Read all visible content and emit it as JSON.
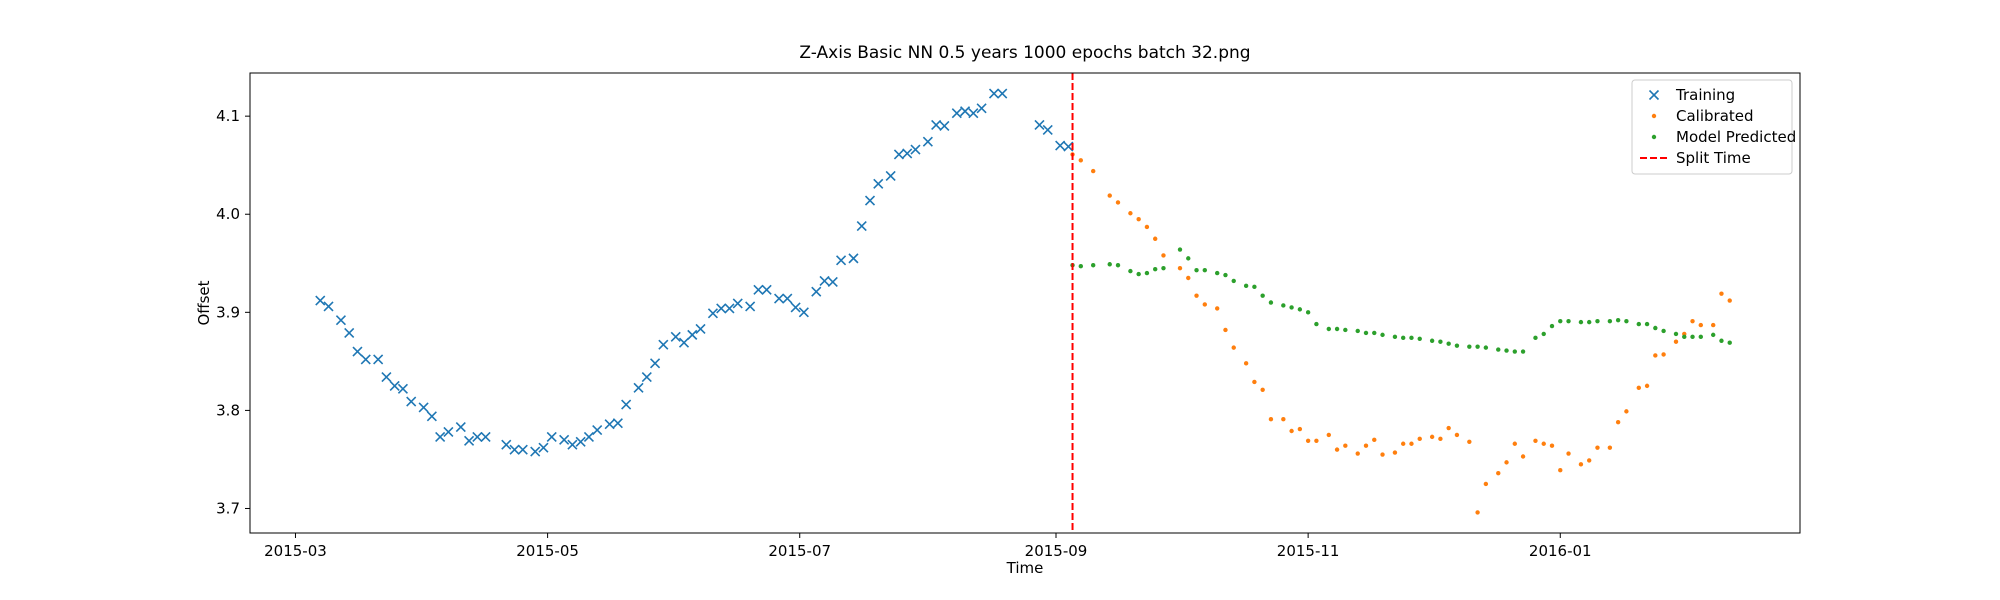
{
  "chart_data": {
    "type": "scatter",
    "title": "Z-Axis Basic NN 0.5 years 1000 epochs batch 32.png",
    "x_label": "Time",
    "y_label": "Offset",
    "xlim": [
      "2015-02-18",
      "2016-02-28"
    ],
    "ylim": [
      3.675,
      4.144
    ],
    "xticks": [
      {
        "value": "2015-03-01",
        "label": "2015-03"
      },
      {
        "value": "2015-05-01",
        "label": "2015-05"
      },
      {
        "value": "2015-07-01",
        "label": "2015-07"
      },
      {
        "value": "2015-09-01",
        "label": "2015-09"
      },
      {
        "value": "2015-11-01",
        "label": "2015-11"
      },
      {
        "value": "2016-01-01",
        "label": "2016-01"
      }
    ],
    "yticks": [
      3.7,
      3.8,
      3.9,
      {
        "value": 4,
        "label": "4.0"
      },
      4.1
    ],
    "legend": "upper right",
    "series": [
      {
        "name": "Training",
        "color": "#1f77b4",
        "marker": "x",
        "x": [
          "2015-03-07",
          "2015-03-09",
          "2015-03-12",
          "2015-03-14",
          "2015-03-16",
          "2015-03-18",
          "2015-03-21",
          "2015-03-23",
          "2015-03-25",
          "2015-03-27",
          "2015-03-29",
          "2015-04-01",
          "2015-04-03",
          "2015-04-05",
          "2015-04-07",
          "2015-04-10",
          "2015-04-12",
          "2015-04-14",
          "2015-04-16",
          "2015-04-21",
          "2015-04-23",
          "2015-04-25",
          "2015-04-28",
          "2015-04-30",
          "2015-05-02",
          "2015-05-05",
          "2015-05-07",
          "2015-05-09",
          "2015-05-11",
          "2015-05-13",
          "2015-05-16",
          "2015-05-18",
          "2015-05-20",
          "2015-05-23",
          "2015-05-25",
          "2015-05-27",
          "2015-05-29",
          "2015-06-01",
          "2015-06-03",
          "2015-06-05",
          "2015-06-07",
          "2015-06-10",
          "2015-06-12",
          "2015-06-14",
          "2015-06-16",
          "2015-06-19",
          "2015-06-21",
          "2015-06-23",
          "2015-06-26",
          "2015-06-28",
          "2015-06-30",
          "2015-07-02",
          "2015-07-05",
          "2015-07-07",
          "2015-07-09",
          "2015-07-11",
          "2015-07-14",
          "2015-07-16",
          "2015-07-18",
          "2015-07-20",
          "2015-07-23",
          "2015-07-25",
          "2015-07-27",
          "2015-07-29",
          "2015-08-01",
          "2015-08-03",
          "2015-08-05",
          "2015-08-08",
          "2015-08-10",
          "2015-08-12",
          "2015-08-14",
          "2015-08-17",
          "2015-08-19",
          "2015-08-28",
          "2015-08-30",
          "2015-09-02",
          "2015-09-04"
        ],
        "values": [
          3.912,
          3.906,
          3.892,
          3.879,
          3.86,
          3.852,
          3.852,
          3.834,
          3.825,
          3.822,
          3.809,
          3.803,
          3.794,
          3.773,
          3.778,
          3.783,
          3.769,
          3.773,
          3.773,
          3.765,
          3.76,
          3.76,
          3.758,
          3.762,
          3.773,
          3.77,
          3.765,
          3.768,
          3.773,
          3.78,
          3.786,
          3.787,
          3.806,
          3.823,
          3.834,
          3.848,
          3.867,
          3.875,
          3.869,
          3.877,
          3.883,
          3.899,
          3.904,
          3.904,
          3.909,
          3.906,
          3.923,
          3.923,
          3.914,
          3.914,
          3.905,
          3.9,
          3.921,
          3.932,
          3.931,
          3.953,
          3.955,
          3.988,
          4.014,
          4.031,
          4.039,
          4.061,
          4.062,
          4.066,
          4.074,
          4.091,
          4.09,
          4.103,
          4.105,
          4.103,
          4.108,
          4.123,
          4.123,
          4.091,
          4.086,
          4.07,
          4.069
        ]
      },
      {
        "name": "Calibrated",
        "color": "#ff7f0e",
        "marker": "o",
        "x": [
          "2015-09-05",
          "2015-09-07",
          "2015-09-10",
          "2015-09-14",
          "2015-09-16",
          "2015-09-19",
          "2015-09-21",
          "2015-09-23",
          "2015-09-25",
          "2015-09-27",
          "2015-10-01",
          "2015-10-03",
          "2015-10-05",
          "2015-10-07",
          "2015-10-10",
          "2015-10-12",
          "2015-10-14",
          "2015-10-17",
          "2015-10-19",
          "2015-10-21",
          "2015-10-23",
          "2015-10-26",
          "2015-10-28",
          "2015-10-30",
          "2015-11-01",
          "2015-11-03",
          "2015-11-06",
          "2015-11-08",
          "2015-11-10",
          "2015-11-13",
          "2015-11-15",
          "2015-11-17",
          "2015-11-19",
          "2015-11-22",
          "2015-11-24",
          "2015-11-26",
          "2015-11-28",
          "2015-12-01",
          "2015-12-03",
          "2015-12-05",
          "2015-12-07",
          "2015-12-10",
          "2015-12-12",
          "2015-12-14",
          "2015-12-17",
          "2015-12-19",
          "2015-12-21",
          "2015-12-23",
          "2015-12-26",
          "2015-12-28",
          "2015-12-30",
          "2016-01-01",
          "2016-01-03",
          "2016-01-06",
          "2016-01-08",
          "2016-01-10",
          "2016-01-13",
          "2016-01-15",
          "2016-01-17",
          "2016-01-20",
          "2016-01-22",
          "2016-01-24",
          "2016-01-26",
          "2016-01-29",
          "2016-01-31",
          "2016-02-02",
          "2016-02-04",
          "2016-02-07",
          "2016-02-09",
          "2016-02-11"
        ],
        "values": [
          4.061,
          4.055,
          4.044,
          4.019,
          4.012,
          4.001,
          3.995,
          3.987,
          3.975,
          3.958,
          3.945,
          3.935,
          3.917,
          3.908,
          3.904,
          3.882,
          3.864,
          3.848,
          3.829,
          3.821,
          3.791,
          3.791,
          3.779,
          3.781,
          3.769,
          3.769,
          3.775,
          3.76,
          3.764,
          3.756,
          3.764,
          3.77,
          3.755,
          3.757,
          3.766,
          3.766,
          3.771,
          3.773,
          3.771,
          3.782,
          3.775,
          3.768,
          3.696,
          3.725,
          3.736,
          3.747,
          3.766,
          3.753,
          3.769,
          3.766,
          3.764,
          3.739,
          3.756,
          3.745,
          3.749,
          3.762,
          3.762,
          3.788,
          3.799,
          3.823,
          3.825,
          3.856,
          3.857,
          3.87,
          3.878,
          3.891,
          3.887,
          3.887,
          3.919,
          3.912
        ]
      },
      {
        "name": "Model Predicted",
        "color": "#2ca02c",
        "marker": "o",
        "x": [
          "2015-09-05",
          "2015-09-07",
          "2015-09-10",
          "2015-09-14",
          "2015-09-16",
          "2015-09-19",
          "2015-09-21",
          "2015-09-23",
          "2015-09-25",
          "2015-09-27",
          "2015-10-01",
          "2015-10-03",
          "2015-10-05",
          "2015-10-07",
          "2015-10-10",
          "2015-10-12",
          "2015-10-14",
          "2015-10-17",
          "2015-10-19",
          "2015-10-21",
          "2015-10-23",
          "2015-10-26",
          "2015-10-28",
          "2015-10-30",
          "2015-11-01",
          "2015-11-03",
          "2015-11-06",
          "2015-11-08",
          "2015-11-10",
          "2015-11-13",
          "2015-11-15",
          "2015-11-17",
          "2015-11-19",
          "2015-11-22",
          "2015-11-24",
          "2015-11-26",
          "2015-11-28",
          "2015-12-01",
          "2015-12-03",
          "2015-12-05",
          "2015-12-07",
          "2015-12-10",
          "2015-12-12",
          "2015-12-14",
          "2015-12-17",
          "2015-12-19",
          "2015-12-21",
          "2015-12-23",
          "2015-12-26",
          "2015-12-28",
          "2015-12-30",
          "2016-01-01",
          "2016-01-03",
          "2016-01-06",
          "2016-01-08",
          "2016-01-10",
          "2016-01-13",
          "2016-01-15",
          "2016-01-17",
          "2016-01-20",
          "2016-01-22",
          "2016-01-24",
          "2016-01-26",
          "2016-01-29",
          "2016-01-31",
          "2016-02-02",
          "2016-02-04",
          "2016-02-07",
          "2016-02-09",
          "2016-02-11"
        ],
        "values": [
          3.948,
          3.947,
          3.948,
          3.949,
          3.948,
          3.942,
          3.939,
          3.94,
          3.944,
          3.945,
          3.964,
          3.955,
          3.943,
          3.943,
          3.94,
          3.938,
          3.932,
          3.927,
          3.926,
          3.917,
          3.91,
          3.907,
          3.905,
          3.903,
          3.9,
          3.888,
          3.883,
          3.883,
          3.882,
          3.881,
          3.879,
          3.879,
          3.877,
          3.875,
          3.874,
          3.874,
          3.873,
          3.871,
          3.87,
          3.868,
          3.866,
          3.865,
          3.865,
          3.864,
          3.862,
          3.861,
          3.86,
          3.86,
          3.874,
          3.878,
          3.886,
          3.891,
          3.891,
          3.89,
          3.89,
          3.891,
          3.891,
          3.892,
          3.891,
          3.888,
          3.888,
          3.884,
          3.881,
          3.878,
          3.875,
          3.875,
          3.875,
          3.877,
          3.871,
          3.869
        ]
      }
    ],
    "split": {
      "name": "Split Time",
      "x": "2015-09-05",
      "color": "#ff0000"
    }
  }
}
